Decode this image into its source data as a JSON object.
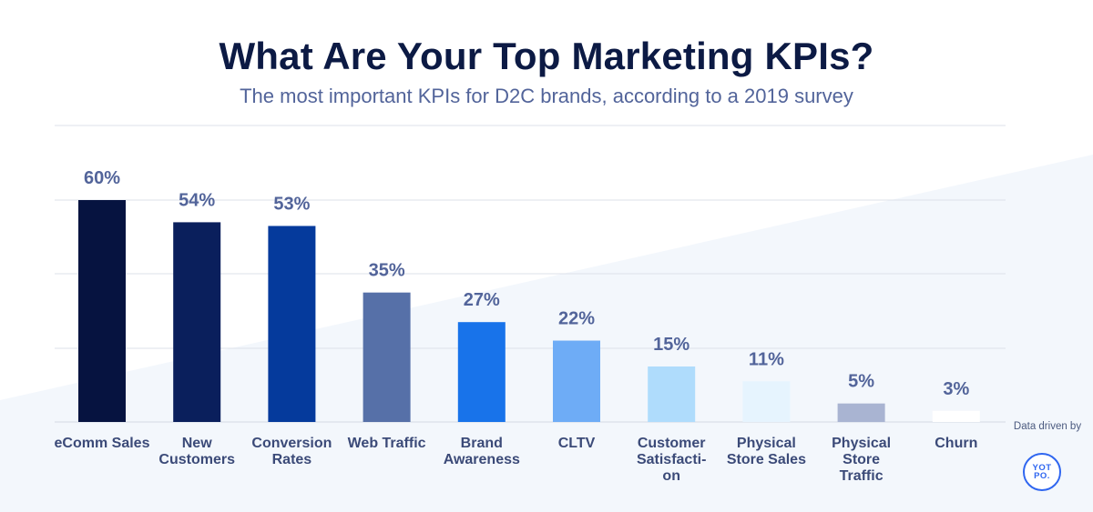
{
  "chart_data": {
    "type": "bar",
    "title": "What Are Your Top Marketing KPIs?",
    "subtitle": "The most important KPIs for D2C brands, according to a 2019 survey",
    "xlabel": "",
    "ylabel": "",
    "ylim": [
      0,
      60
    ],
    "grid": true,
    "legend": "none",
    "categories": [
      "eComm Sales",
      "New Customers",
      "Conversion Rates",
      "Web Traffic",
      "Brand Awareness",
      "CLTV",
      "Customer Satisfacti-on",
      "Physical Store Sales",
      "Physical Store Traffic",
      "Churn"
    ],
    "category_lines": [
      [
        "eComm Sales"
      ],
      [
        "New",
        "Customers"
      ],
      [
        "Conversion",
        "Rates"
      ],
      [
        "Web Traffic"
      ],
      [
        "Brand",
        "Awareness"
      ],
      [
        "CLTV"
      ],
      [
        "Customer",
        "Satisfacti-",
        "on"
      ],
      [
        "Physical",
        "Store Sales"
      ],
      [
        "Physical",
        "Store",
        "Traffic"
      ],
      [
        "Churn"
      ]
    ],
    "values": [
      60,
      54,
      53,
      35,
      27,
      22,
      15,
      11,
      5,
      3
    ],
    "value_labels": [
      "60%",
      "54%",
      "53%",
      "35%",
      "27%",
      "22%",
      "15%",
      "11%",
      "5%",
      "3%"
    ],
    "colors": [
      "#061340",
      "#0a1f5c",
      "#053a9c",
      "#5670a8",
      "#1873ea",
      "#6eacf6",
      "#afdcfc",
      "#e6f4fe",
      "#a9b4d2",
      "#ffffff"
    ]
  },
  "credit": {
    "text": "Data driven by",
    "logo": "YOTPO."
  }
}
